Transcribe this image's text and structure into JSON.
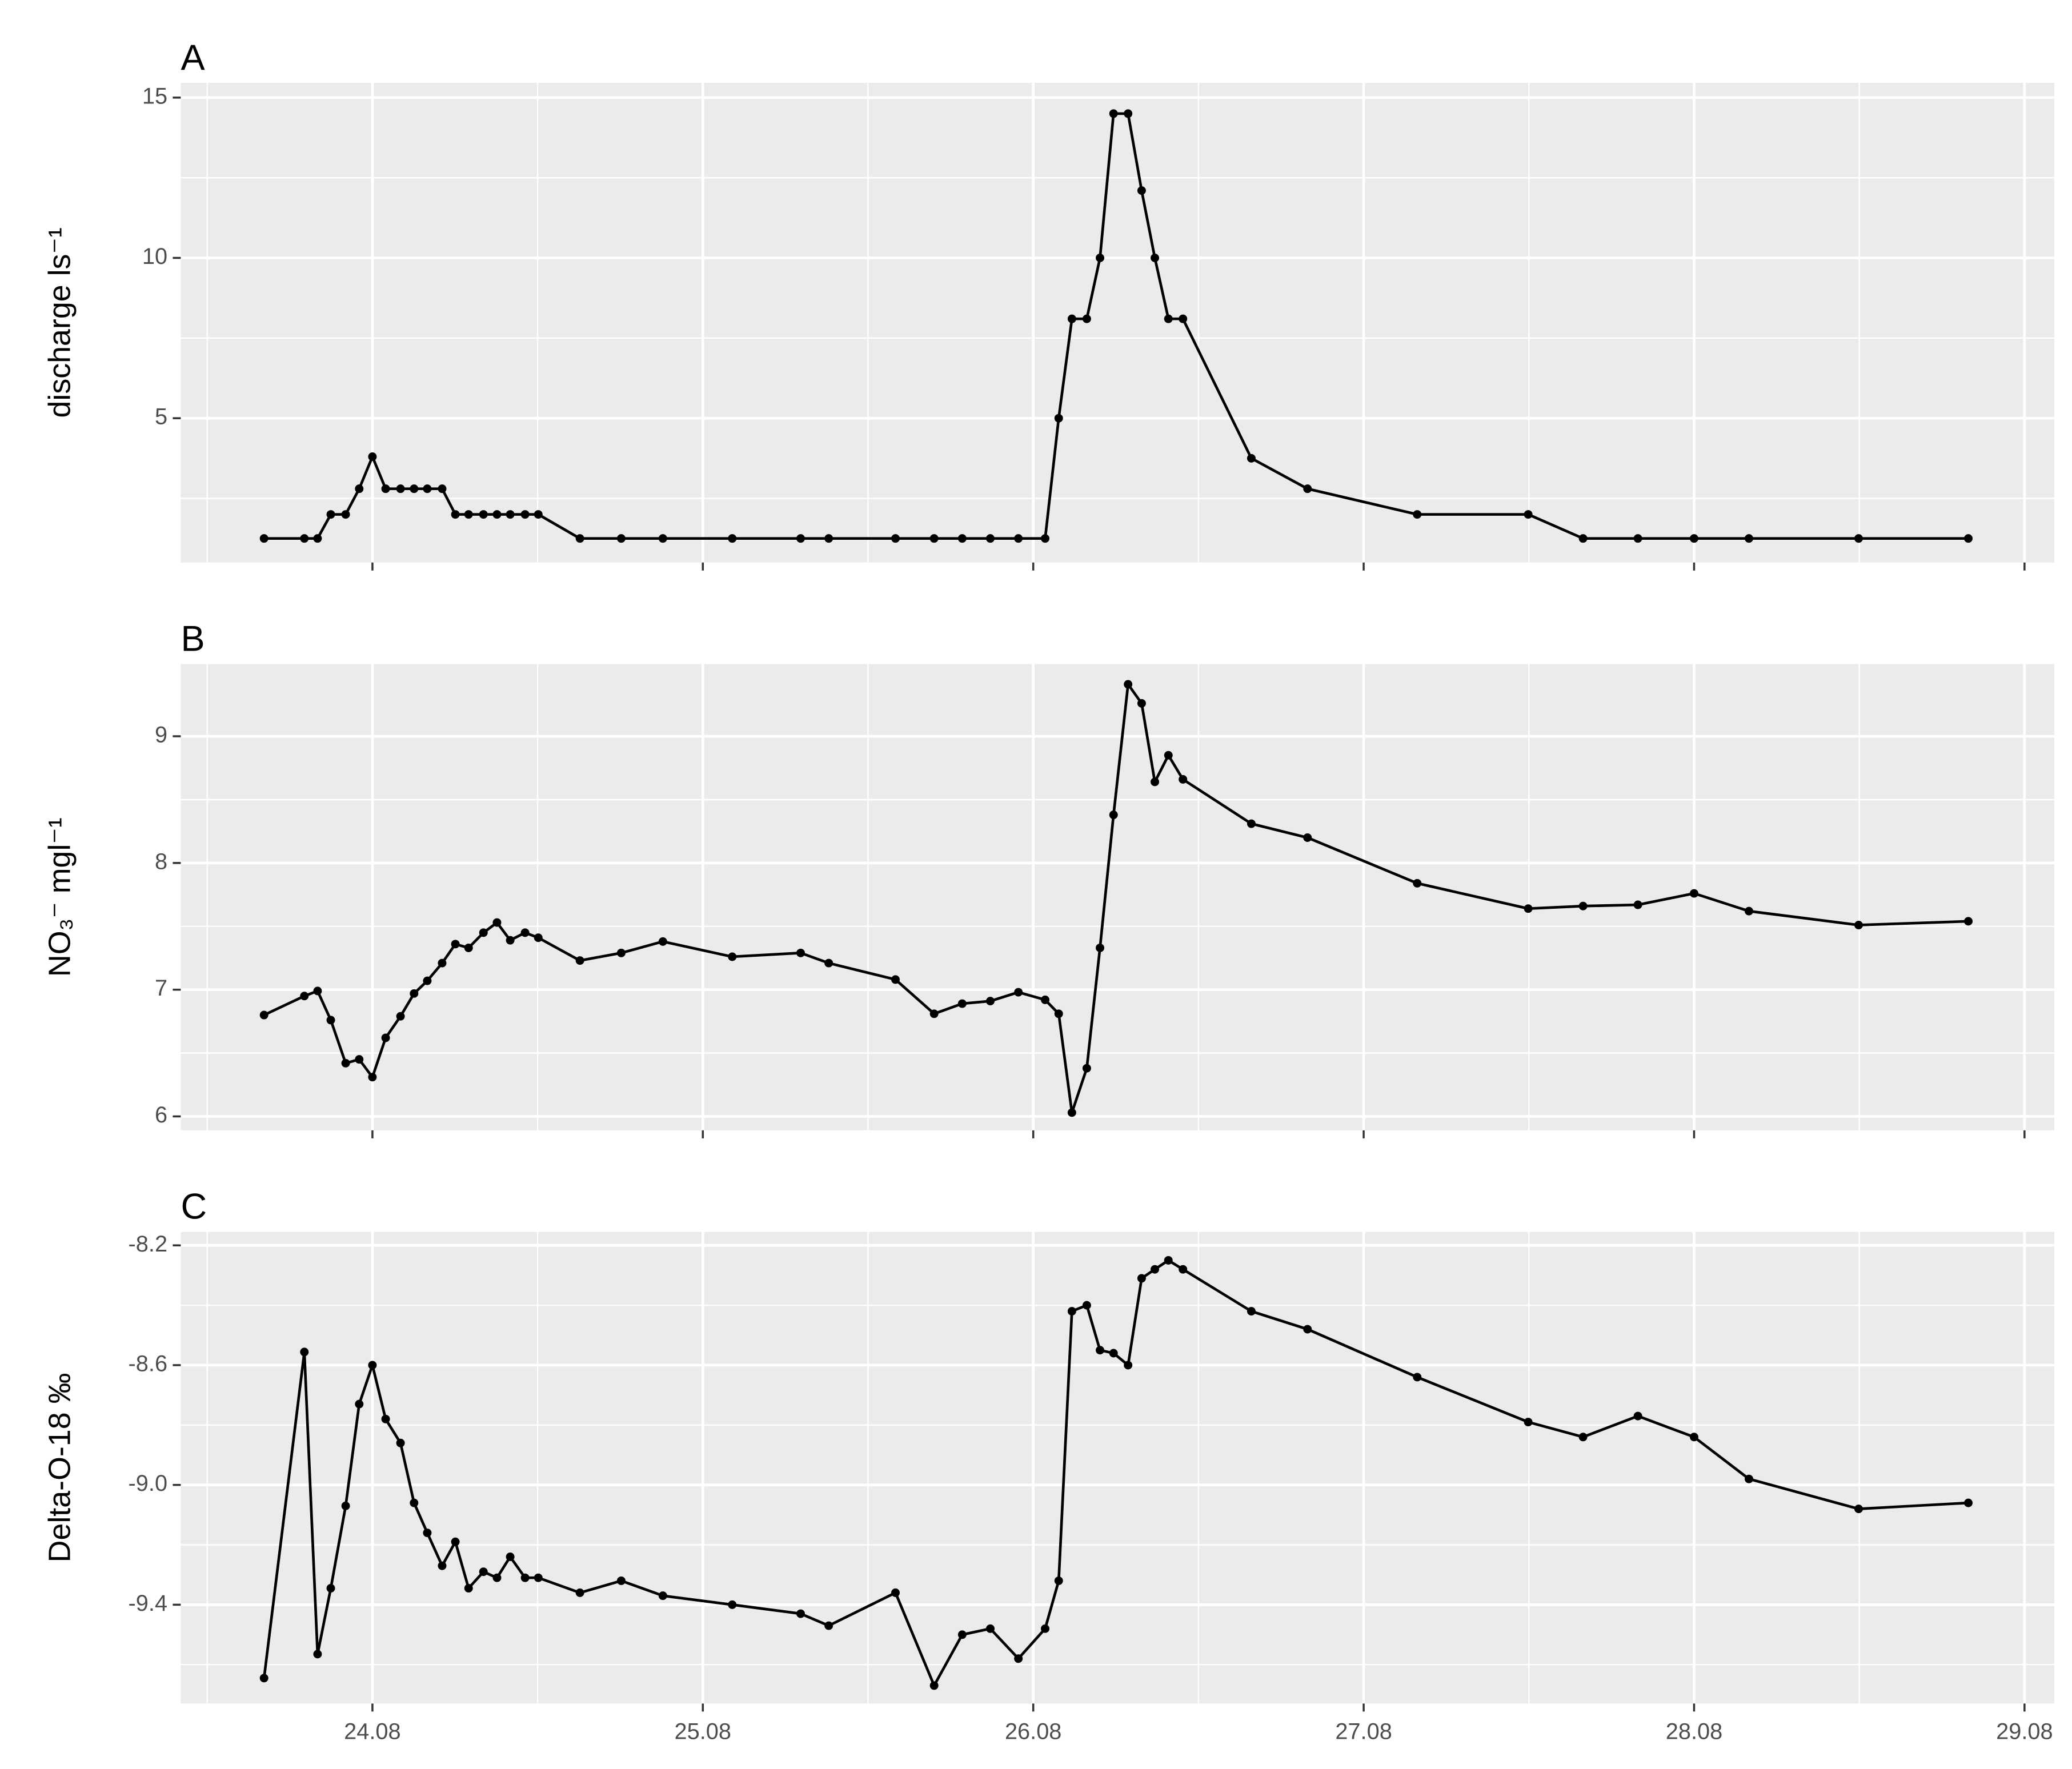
{
  "chart_data": [
    {
      "type": "line",
      "panel_label": "A",
      "ylabel": "discharge ls⁻¹",
      "color": "#000000",
      "grid": true,
      "x": [
        23.672,
        23.794,
        23.834,
        23.874,
        23.919,
        23.96,
        24.0,
        24.04,
        24.085,
        24.126,
        24.166,
        24.211,
        24.251,
        24.291,
        24.336,
        24.377,
        24.417,
        24.462,
        24.502,
        24.628,
        24.753,
        24.879,
        25.089,
        25.296,
        25.381,
        25.583,
        25.7,
        25.785,
        25.87,
        25.955,
        26.036,
        26.077,
        26.117,
        26.162,
        26.202,
        26.243,
        26.287,
        26.328,
        26.368,
        26.409,
        26.453,
        26.66,
        26.83,
        27.162,
        27.498,
        27.664,
        27.83,
        28.0,
        28.166,
        28.498,
        28.83
      ],
      "values": [
        1.25,
        1.25,
        1.25,
        2,
        2,
        2.8,
        3.8,
        2.8,
        2.8,
        2.8,
        2.8,
        2.8,
        2,
        2,
        2,
        2,
        2,
        2,
        2,
        1.25,
        1.25,
        1.25,
        1.25,
        1.25,
        1.25,
        1.25,
        1.25,
        1.25,
        1.25,
        1.25,
        1.25,
        5,
        8.1,
        8.1,
        10,
        14.5,
        14.5,
        12.1,
        10,
        8.1,
        8.1,
        3.75,
        2.8,
        2,
        2,
        1.25,
        1.25,
        1.25,
        1.25,
        1.25,
        1.25
      ],
      "xlim": [
        23.42,
        29.09
      ],
      "ylim": [
        0.5,
        15.46
      ],
      "xticks": [
        24,
        25,
        26,
        27,
        28,
        29
      ],
      "yticks": [
        5,
        10,
        15
      ]
    },
    {
      "type": "line",
      "panel_label": "B",
      "ylabel": "NO₃⁻ mgl⁻¹",
      "color": "#000000",
      "grid": true,
      "x": [
        23.672,
        23.794,
        23.834,
        23.874,
        23.919,
        23.96,
        24.0,
        24.04,
        24.085,
        24.126,
        24.166,
        24.211,
        24.251,
        24.291,
        24.336,
        24.377,
        24.417,
        24.462,
        24.502,
        24.628,
        24.753,
        24.879,
        25.089,
        25.296,
        25.381,
        25.583,
        25.7,
        25.785,
        25.87,
        25.955,
        26.036,
        26.077,
        26.117,
        26.162,
        26.202,
        26.243,
        26.287,
        26.328,
        26.368,
        26.409,
        26.453,
        26.66,
        26.83,
        27.162,
        27.498,
        27.664,
        27.83,
        28.0,
        28.166,
        28.498,
        28.83
      ],
      "values": [
        6.8,
        6.95,
        6.99,
        6.76,
        6.42,
        6.45,
        6.31,
        6.62,
        6.79,
        6.97,
        7.07,
        7.21,
        7.36,
        7.33,
        7.45,
        7.53,
        7.39,
        7.45,
        7.41,
        7.23,
        7.29,
        7.38,
        7.26,
        7.29,
        7.21,
        7.08,
        6.81,
        6.89,
        6.91,
        6.98,
        6.92,
        6.81,
        6.03,
        6.38,
        7.33,
        8.38,
        9.41,
        9.26,
        8.64,
        8.85,
        8.66,
        8.31,
        8.2,
        7.84,
        7.64,
        7.66,
        7.67,
        7.76,
        7.62,
        7.51,
        7.54
      ],
      "xlim": [
        23.42,
        29.09
      ],
      "ylim": [
        5.89,
        9.57
      ],
      "xticks": [
        24,
        25,
        26,
        27,
        28,
        29
      ],
      "yticks": [
        6,
        7,
        8,
        9
      ]
    },
    {
      "type": "line",
      "panel_label": "C",
      "ylabel": "Delta-O-18 ‰",
      "color": "#000000",
      "grid": true,
      "x": [
        23.672,
        23.794,
        23.834,
        23.874,
        23.919,
        23.96,
        24.0,
        24.04,
        24.085,
        24.126,
        24.166,
        24.211,
        24.251,
        24.291,
        24.336,
        24.377,
        24.417,
        24.462,
        24.502,
        24.628,
        24.753,
        24.879,
        25.089,
        25.296,
        25.381,
        25.583,
        25.7,
        25.785,
        25.87,
        25.955,
        26.036,
        26.077,
        26.117,
        26.162,
        26.202,
        26.243,
        26.287,
        26.328,
        26.368,
        26.409,
        26.453,
        26.66,
        26.83,
        27.162,
        27.498,
        27.664,
        27.83,
        28.0,
        28.166,
        28.498,
        28.83
      ],
      "values": [
        -9.645,
        -8.556,
        -9.565,
        -9.345,
        -9.07,
        -8.73,
        -8.6,
        -8.78,
        -8.86,
        -9.06,
        -9.16,
        -9.27,
        -9.19,
        -9.345,
        -9.29,
        -9.31,
        -9.24,
        -9.31,
        -9.31,
        -9.36,
        -9.32,
        -9.37,
        -9.4,
        -9.43,
        -9.47,
        -9.36,
        -9.67,
        -9.5,
        -9.48,
        -9.58,
        -9.48,
        -9.32,
        -8.42,
        -8.4,
        -8.55,
        -8.56,
        -8.6,
        -8.31,
        -8.28,
        -8.25,
        -8.28,
        -8.42,
        -8.48,
        -8.64,
        -8.79,
        -8.84,
        -8.77,
        -8.84,
        -8.98,
        -9.08,
        -9.06
      ],
      "xlim": [
        23.42,
        29.09
      ],
      "ylim": [
        -9.73,
        -8.155
      ],
      "xticks": [
        {
          "value": 24,
          "label": "24.08"
        },
        {
          "value": 25,
          "label": "25.08"
        },
        {
          "value": 26,
          "label": "26.08"
        },
        {
          "value": 27,
          "label": "27.08"
        },
        {
          "value": 28,
          "label": "28.08"
        },
        {
          "value": 29,
          "label": "29.08"
        }
      ],
      "yticks": [
        -9.4,
        {
          "value": -9,
          "label": "-9.0"
        },
        -8.6,
        -8.2
      ]
    }
  ]
}
